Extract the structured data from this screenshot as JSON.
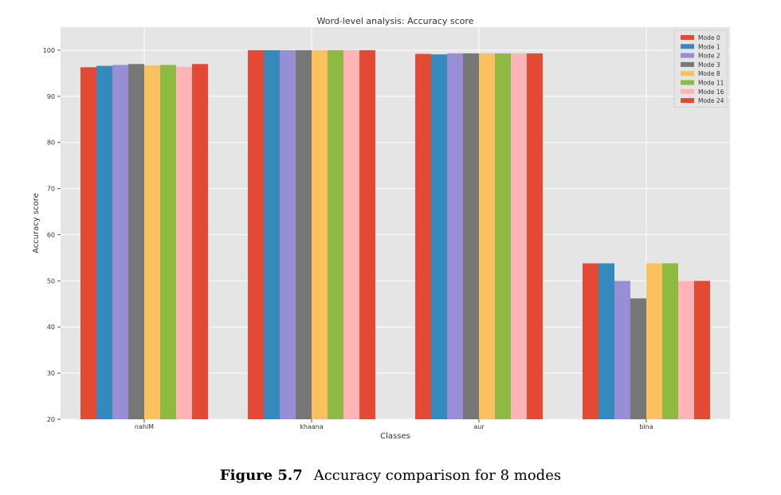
{
  "chart_data": {
    "type": "bar",
    "title": "Word-level analysis: Accuracy score",
    "xlabel": "Classes",
    "ylabel": "Accuracy score",
    "ylim": [
      20,
      105
    ],
    "yticks": [
      20,
      30,
      40,
      50,
      60,
      70,
      80,
      90,
      100
    ],
    "grid": true,
    "legend_position": "top-right",
    "categories": [
      "nahiM",
      "khaana",
      "aur",
      "bina"
    ],
    "series": [
      {
        "name": "Mode 0",
        "color": "#e24a33",
        "values": [
          96.3,
          100,
          99.2,
          53.8
        ]
      },
      {
        "name": "Mode 1",
        "color": "#348abd",
        "values": [
          96.6,
          100,
          99.1,
          53.8
        ]
      },
      {
        "name": "Mode 2",
        "color": "#988ed5",
        "values": [
          96.8,
          100,
          99.3,
          50.0
        ]
      },
      {
        "name": "Mode 3",
        "color": "#777777",
        "values": [
          97.0,
          100,
          99.3,
          46.2
        ]
      },
      {
        "name": "Mode 8",
        "color": "#fbc15e",
        "values": [
          96.7,
          100,
          99.3,
          53.8
        ]
      },
      {
        "name": "Mode 11",
        "color": "#8eba42",
        "values": [
          96.8,
          100,
          99.3,
          53.8
        ]
      },
      {
        "name": "Mode 16",
        "color": "#ffb5b8",
        "values": [
          96.4,
          100,
          99.3,
          50.0
        ]
      },
      {
        "name": "Mode 24",
        "color": "#e24a33",
        "values": [
          97.0,
          100,
          99.3,
          50.0
        ]
      }
    ]
  },
  "caption": {
    "figure_number": "Figure 5.7",
    "text": "Accuracy comparison for 8 modes"
  }
}
